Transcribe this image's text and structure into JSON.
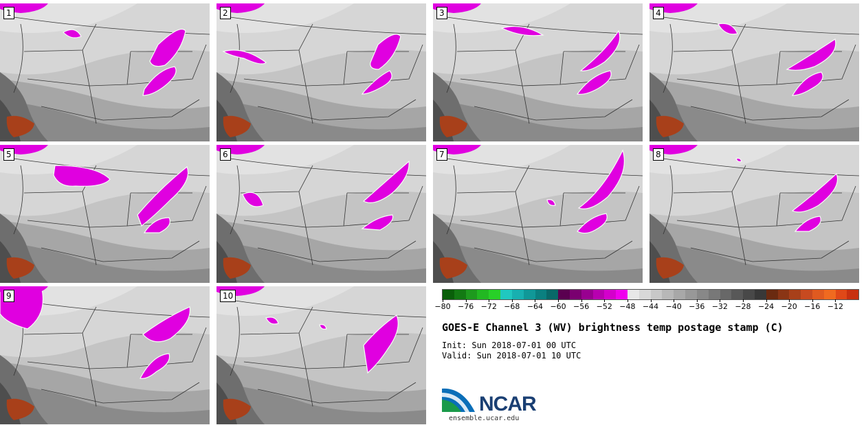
{
  "panels": [
    {
      "label": "1"
    },
    {
      "label": "2"
    },
    {
      "label": "3"
    },
    {
      "label": "4"
    },
    {
      "label": "5"
    },
    {
      "label": "6"
    },
    {
      "label": "7"
    },
    {
      "label": "8"
    },
    {
      "label": "9"
    },
    {
      "label": "10"
    }
  ],
  "colorbar": {
    "ticks": [
      "−80",
      "−76",
      "−72",
      "−68",
      "−64",
      "−60",
      "−56",
      "−52",
      "−48",
      "−44",
      "−40",
      "−36",
      "−32",
      "−28",
      "−24",
      "−20",
      "−16",
      "−12"
    ],
    "colors": [
      "#0a5f0a",
      "#137a13",
      "#1e9a1e",
      "#22b822",
      "#28d028",
      "#20c8c0",
      "#18b0b0",
      "#109898",
      "#0a8080",
      "#086868",
      "#5a0050",
      "#7a0070",
      "#990090",
      "#b800b0",
      "#d400cc",
      "#f000ee",
      "#e8e8e8",
      "#d8d8d8",
      "#c8c8c8",
      "#b8b8b8",
      "#a8a8a8",
      "#989898",
      "#888888",
      "#787878",
      "#686868",
      "#585858",
      "#484848",
      "#383838",
      "#6a2a10",
      "#8a3515",
      "#a8401a",
      "#c84a20",
      "#e05a20",
      "#f06a20",
      "#e04818",
      "#c83010"
    ]
  },
  "title": "GOES-E Channel 3 (WV) brightness temp postage stamp (C)",
  "init_line": "Init: Sun 2018-07-01 00 UTC",
  "valid_line": "Valid: Sun 2018-07-01 10 UTC",
  "logo": {
    "text": "NCAR",
    "url": "ensemble.ucar.edu"
  }
}
